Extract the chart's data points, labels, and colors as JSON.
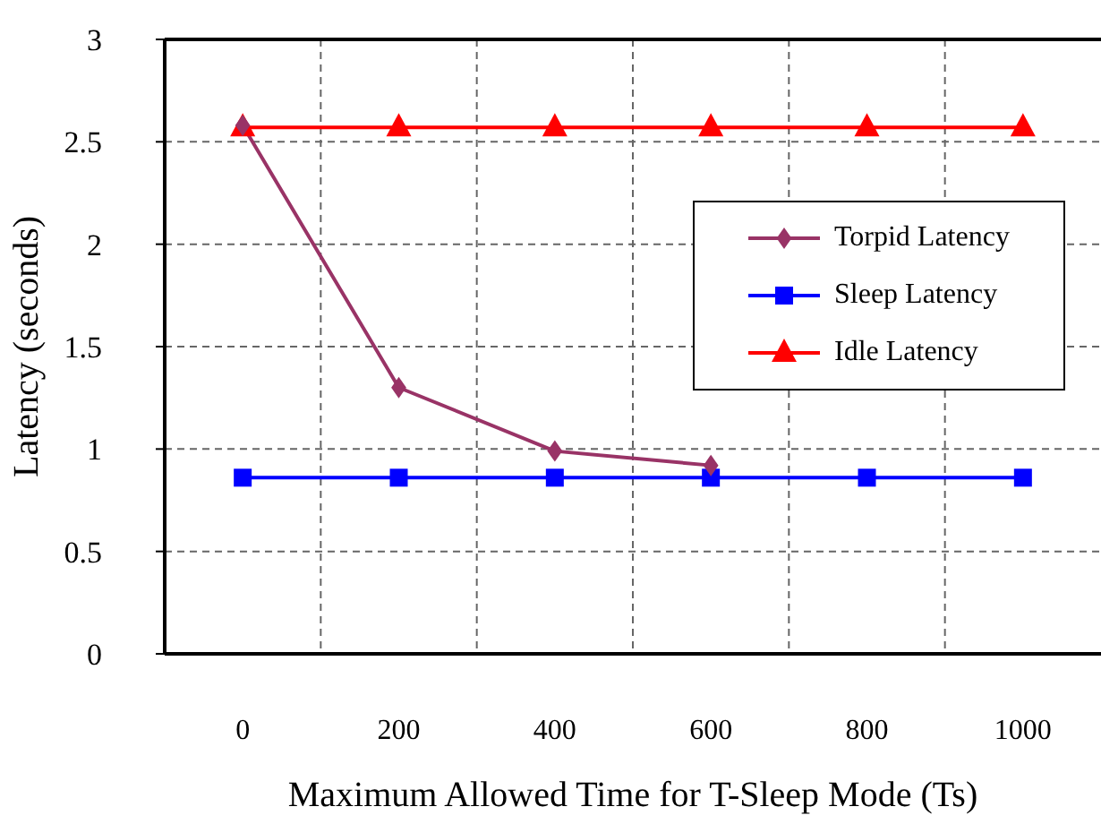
{
  "chart_data": {
    "type": "line",
    "xlabel": "Maximum Allowed Time for T-Sleep Mode (Ts)",
    "ylabel": "Latency (seconds)",
    "categories": [
      "0",
      "200",
      "400",
      "600",
      "800",
      "1000"
    ],
    "series": [
      {
        "name": "Torpid Latency",
        "color": "#993366",
        "marker": "diamond",
        "values": [
          2.58,
          1.3,
          0.99,
          0.92,
          null,
          null
        ]
      },
      {
        "name": "Sleep Latency",
        "color": "#0000ff",
        "marker": "square",
        "values": [
          0.86,
          0.86,
          0.86,
          0.86,
          0.86,
          0.86
        ]
      },
      {
        "name": "Idle Latency",
        "color": "#ff0000",
        "marker": "triangle",
        "values": [
          2.57,
          2.57,
          2.57,
          2.57,
          2.57,
          2.57
        ]
      }
    ],
    "ylim": [
      0,
      3
    ],
    "yticks": [
      0,
      0.5,
      1,
      1.5,
      2,
      2.5,
      3
    ],
    "grid": true,
    "legend": "right",
    "line_style": "solid"
  }
}
